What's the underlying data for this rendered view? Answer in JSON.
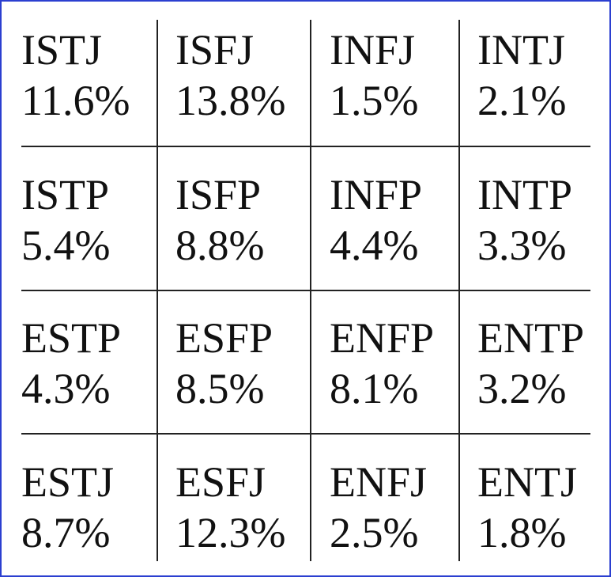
{
  "table": {
    "rows": [
      [
        {
          "type": "ISTJ",
          "percent": "11.6%"
        },
        {
          "type": "ISFJ",
          "percent": "13.8%"
        },
        {
          "type": "INFJ",
          "percent": "1.5%"
        },
        {
          "type": "INTJ",
          "percent": "2.1%"
        }
      ],
      [
        {
          "type": "ISTP",
          "percent": "5.4%"
        },
        {
          "type": "ISFP",
          "percent": "8.8%"
        },
        {
          "type": "INFP",
          "percent": "4.4%"
        },
        {
          "type": "INTP",
          "percent": "3.3%"
        }
      ],
      [
        {
          "type": "ESTP",
          "percent": "4.3%"
        },
        {
          "type": "ESFP",
          "percent": "8.5%"
        },
        {
          "type": "ENFP",
          "percent": "8.1%"
        },
        {
          "type": "ENTP",
          "percent": "3.2%"
        }
      ],
      [
        {
          "type": "ESTJ",
          "percent": "8.7%"
        },
        {
          "type": "ESFJ",
          "percent": "12.3%"
        },
        {
          "type": "ENFJ",
          "percent": "2.5%"
        },
        {
          "type": "ENTJ",
          "percent": "1.8%"
        }
      ]
    ]
  }
}
